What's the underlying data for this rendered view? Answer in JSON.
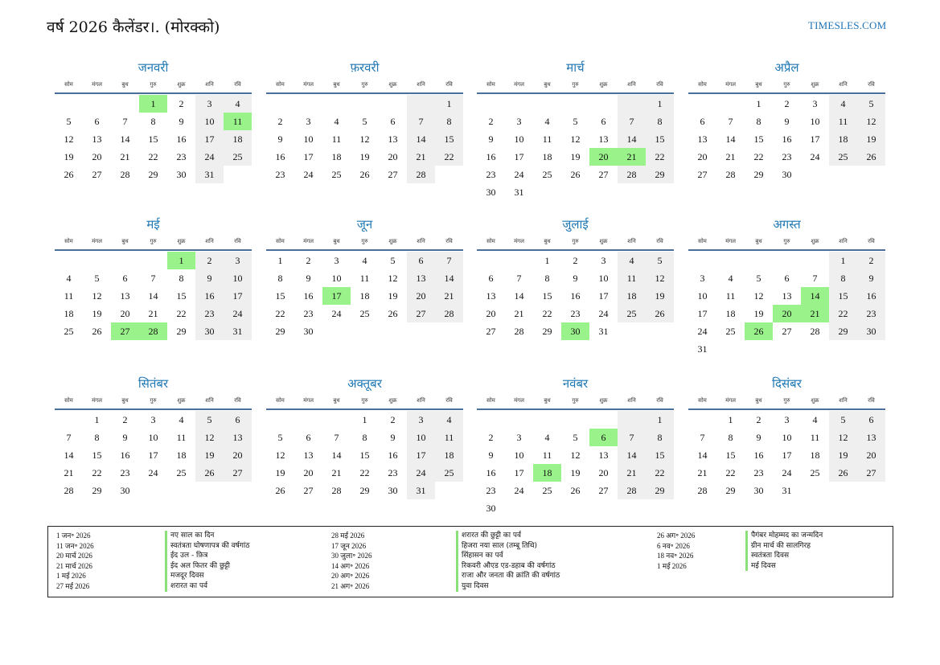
{
  "title": "वर्ष 2026 कैलेंडर।. (मोरक्को)",
  "site": "TIMESLES.COM",
  "weekdays": [
    "सोम",
    "मंगल",
    "बुध",
    "गुरु",
    "शुक्र",
    "शनि",
    "रवि"
  ],
  "months": [
    {
      "name": "जनवरी",
      "offset": 3,
      "days": 31,
      "holidays": [
        1,
        11
      ]
    },
    {
      "name": "फ़रवरी",
      "offset": 6,
      "days": 28,
      "holidays": []
    },
    {
      "name": "मार्च",
      "offset": 6,
      "days": 31,
      "holidays": [
        20,
        21
      ]
    },
    {
      "name": "अप्रैल",
      "offset": 2,
      "days": 30,
      "holidays": []
    },
    {
      "name": "मई",
      "offset": 4,
      "days": 31,
      "holidays": [
        1,
        27,
        28
      ]
    },
    {
      "name": "जून",
      "offset": 0,
      "days": 30,
      "holidays": [
        17
      ]
    },
    {
      "name": "जुलाई",
      "offset": 2,
      "days": 31,
      "holidays": [
        30
      ]
    },
    {
      "name": "अगस्त",
      "offset": 5,
      "days": 31,
      "holidays": [
        14,
        20,
        21,
        26
      ]
    },
    {
      "name": "सितंबर",
      "offset": 1,
      "days": 30,
      "holidays": []
    },
    {
      "name": "अक्तूबर",
      "offset": 3,
      "days": 31,
      "holidays": []
    },
    {
      "name": "नवंबर",
      "offset": 6,
      "days": 30,
      "holidays": [
        6,
        18
      ]
    },
    {
      "name": "दिसंबर",
      "offset": 1,
      "days": 31,
      "holidays": []
    }
  ],
  "holiday_list": [
    [
      {
        "date": "1 जन॰ 2026",
        "name": "नए साल का दिन"
      },
      {
        "date": "11 जन॰ 2026",
        "name": "स्वतंत्रता घोषणापत्र की वर्षगांठ"
      },
      {
        "date": "20 मार्च 2026",
        "name": "ईद उल - फ़ित्र"
      },
      {
        "date": "21 मार्च 2026",
        "name": "ईद अल फितर की छुट्टी"
      },
      {
        "date": "1 मई 2026",
        "name": "मजदूर दिवस"
      },
      {
        "date": "27 मई 2026",
        "name": "शरारत का पर्व"
      }
    ],
    [
      {
        "date": "28 मई 2026",
        "name": "शरारत की छुट्टी का पर्व"
      },
      {
        "date": "17 जून 2026",
        "name": "हिजरा नया साल (तम्बू तिथि)"
      },
      {
        "date": "30 जुला॰ 2026",
        "name": "सिंहासन का पर्व"
      },
      {
        "date": "14 अग॰ 2026",
        "name": "रिकवरी औएड एड-डहाब की वर्षगांठ"
      },
      {
        "date": "20 अग॰ 2026",
        "name": "राजा और जनता की क्रांति की वर्षगांठ"
      },
      {
        "date": "21 अग॰ 2026",
        "name": "युवा दिवस"
      }
    ],
    [
      {
        "date": "26 अग॰ 2026",
        "name": "पैगंबर मोहम्मद का जन्मदिन"
      },
      {
        "date": "6 नव॰ 2026",
        "name": "ग्रीन मार्च की सालगिरह"
      },
      {
        "date": "18 नव॰ 2026",
        "name": "स्वतंत्रता दिवस"
      },
      {
        "date": "1 मई 2026",
        "name": "मई दिवस"
      }
    ]
  ]
}
